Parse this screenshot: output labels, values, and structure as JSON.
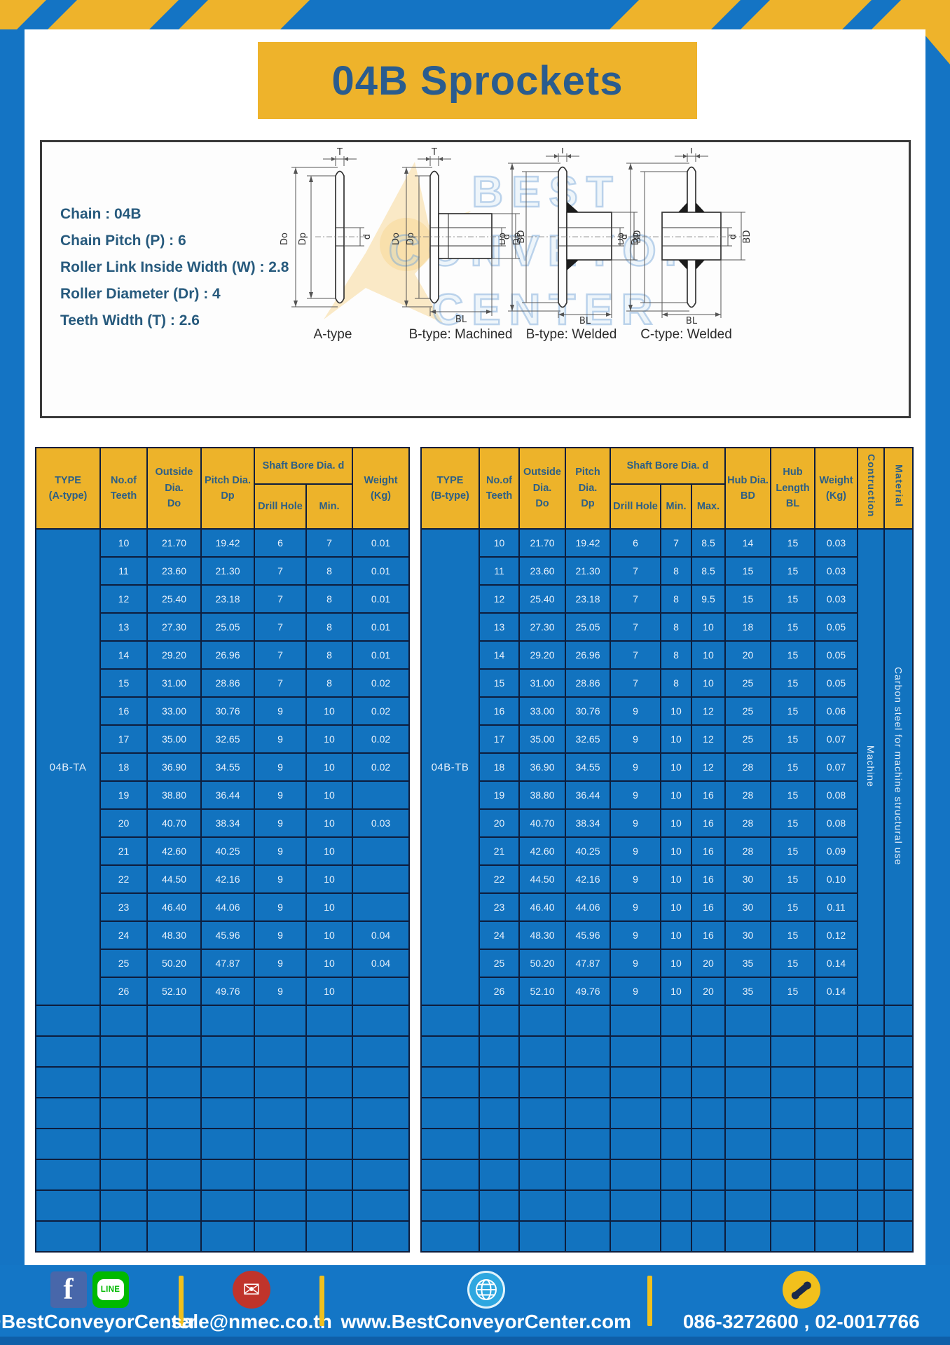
{
  "title": "04B Sprockets",
  "specs": [
    "Chain : 04B",
    "Chain Pitch (P) : 6",
    "Roller Link Inside Width (W) : 2.8",
    "Roller Diameter (Dr) : 4",
    "Teeth Width (T) : 2.6"
  ],
  "diagram": {
    "watermark_lines": [
      "BEST",
      "CONVEYOR",
      "CENTER"
    ],
    "labels": [
      "A-type",
      "B-type: Machined",
      "B-type: Welded",
      "C-type: Welded"
    ],
    "dims": {
      "t": "T",
      "outside": "Do",
      "pitch": "Dp",
      "bore": "d",
      "hub_dia": "BD",
      "hub_len": "BL"
    }
  },
  "table_a": {
    "headers": {
      "type": "TYPE\n(A-type)",
      "teeth": "No.of\nTeeth",
      "outside": "Outside\nDia.\nDo",
      "pitch": "Pitch Dia.\nDp",
      "shaft": "Shaft Bore Dia. d",
      "drill": "Drill Hole",
      "min": "Min.",
      "weight": "Weight\n(Kg)"
    },
    "type_label": "04B-TA",
    "rows": [
      [
        "10",
        "21.70",
        "19.42",
        "6",
        "7",
        "0.01"
      ],
      [
        "11",
        "23.60",
        "21.30",
        "7",
        "8",
        "0.01"
      ],
      [
        "12",
        "25.40",
        "23.18",
        "7",
        "8",
        "0.01"
      ],
      [
        "13",
        "27.30",
        "25.05",
        "7",
        "8",
        "0.01"
      ],
      [
        "14",
        "29.20",
        "26.96",
        "7",
        "8",
        "0.01"
      ],
      [
        "15",
        "31.00",
        "28.86",
        "7",
        "8",
        "0.02"
      ],
      [
        "16",
        "33.00",
        "30.76",
        "9",
        "10",
        "0.02"
      ],
      [
        "17",
        "35.00",
        "32.65",
        "9",
        "10",
        "0.02"
      ],
      [
        "18",
        "36.90",
        "34.55",
        "9",
        "10",
        "0.02"
      ],
      [
        "19",
        "38.80",
        "36.44",
        "9",
        "10",
        ""
      ],
      [
        "20",
        "40.70",
        "38.34",
        "9",
        "10",
        "0.03"
      ],
      [
        "21",
        "42.60",
        "40.25",
        "9",
        "10",
        ""
      ],
      [
        "22",
        "44.50",
        "42.16",
        "9",
        "10",
        ""
      ],
      [
        "23",
        "46.40",
        "44.06",
        "9",
        "10",
        ""
      ],
      [
        "24",
        "48.30",
        "45.96",
        "9",
        "10",
        "0.04"
      ],
      [
        "25",
        "50.20",
        "47.87",
        "9",
        "10",
        "0.04"
      ],
      [
        "26",
        "52.10",
        "49.76",
        "9",
        "10",
        ""
      ]
    ],
    "empty_row_count": 8
  },
  "table_b": {
    "headers": {
      "type": "TYPE\n(B-type)",
      "teeth": "No.of\nTeeth",
      "outside": "Outside\nDia.\nDo",
      "pitch": "Pitch Dia.\nDp",
      "shaft": "Shaft Bore Dia. d",
      "drill": "Drill Hole",
      "min": "Min.",
      "max": "Max.",
      "hub_dia": "Hub Dia.\nBD",
      "hub_len": "Hub\nLength\nBL",
      "weight": "Weight\n(Kg)",
      "construction": "Contruction",
      "material": "Material"
    },
    "type_label": "04B-TB",
    "construction_value": "Machine",
    "material_value": "Carbon steel for machine structural use",
    "rows": [
      [
        "10",
        "21.70",
        "19.42",
        "6",
        "7",
        "8.5",
        "14",
        "15",
        "0.03"
      ],
      [
        "11",
        "23.60",
        "21.30",
        "7",
        "8",
        "8.5",
        "15",
        "15",
        "0.03"
      ],
      [
        "12",
        "25.40",
        "23.18",
        "7",
        "8",
        "9.5",
        "15",
        "15",
        "0.03"
      ],
      [
        "13",
        "27.30",
        "25.05",
        "7",
        "8",
        "10",
        "18",
        "15",
        "0.05"
      ],
      [
        "14",
        "29.20",
        "26.96",
        "7",
        "8",
        "10",
        "20",
        "15",
        "0.05"
      ],
      [
        "15",
        "31.00",
        "28.86",
        "7",
        "8",
        "10",
        "25",
        "15",
        "0.05"
      ],
      [
        "16",
        "33.00",
        "30.76",
        "9",
        "10",
        "12",
        "25",
        "15",
        "0.06"
      ],
      [
        "17",
        "35.00",
        "32.65",
        "9",
        "10",
        "12",
        "25",
        "15",
        "0.07"
      ],
      [
        "18",
        "36.90",
        "34.55",
        "9",
        "10",
        "12",
        "28",
        "15",
        "0.07"
      ],
      [
        "19",
        "38.80",
        "36.44",
        "9",
        "10",
        "16",
        "28",
        "15",
        "0.08"
      ],
      [
        "20",
        "40.70",
        "38.34",
        "9",
        "10",
        "16",
        "28",
        "15",
        "0.08"
      ],
      [
        "21",
        "42.60",
        "40.25",
        "9",
        "10",
        "16",
        "28",
        "15",
        "0.09"
      ],
      [
        "22",
        "44.50",
        "42.16",
        "9",
        "10",
        "16",
        "30",
        "15",
        "0.10"
      ],
      [
        "23",
        "46.40",
        "44.06",
        "9",
        "10",
        "16",
        "30",
        "15",
        "0.11"
      ],
      [
        "24",
        "48.30",
        "45.96",
        "9",
        "10",
        "16",
        "30",
        "15",
        "0.12"
      ],
      [
        "25",
        "50.20",
        "47.87",
        "9",
        "10",
        "20",
        "35",
        "15",
        "0.14"
      ],
      [
        "26",
        "52.10",
        "49.76",
        "9",
        "10",
        "20",
        "35",
        "15",
        "0.14"
      ]
    ],
    "empty_row_count": 8
  },
  "footer": {
    "facebook_letter": "f",
    "line_label": "LINE",
    "social_handle": "@BestConveyorCenter",
    "email_glyph": "✉",
    "email": "sale@nmec.co.th",
    "website": "www.BestConveyorCenter.com",
    "phone": "086-3272600 , 02-0017766"
  },
  "colors": {
    "frame_blue": "#1474c4",
    "accent_yellow": "#eeb32b",
    "table_blue": "#1273bf",
    "header_yellow": "#edb32a",
    "header_text": "#2c5f86",
    "grid_navy": "#0d1d3d",
    "footer_blue": "#1476c6",
    "title_text": "#2a5c8e"
  }
}
